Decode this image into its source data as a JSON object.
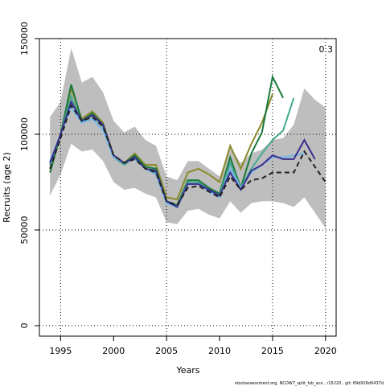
{
  "chart_data": {
    "type": "line",
    "xlabel": "Years",
    "ylabel": "Recruits (age 2)",
    "annotation": "0.3",
    "footer": "stockassessment.org, NCOW7_split_tsb_aco , r15220 , git: 69d926d0437d",
    "x": [
      1994,
      1995,
      1996,
      1997,
      1998,
      1999,
      2000,
      2001,
      2002,
      2003,
      2004,
      2005,
      2006,
      2007,
      2008,
      2009,
      2010,
      2011,
      2012,
      2013,
      2014,
      2015,
      2016,
      2017,
      2018,
      2019,
      2020
    ],
    "band": {
      "color": "#bebebe",
      "lower": [
        68000,
        79000,
        95000,
        91000,
        92000,
        86000,
        75000,
        71000,
        72000,
        69000,
        67000,
        54000,
        53000,
        60000,
        61000,
        58000,
        56000,
        65000,
        59000,
        64000,
        65000,
        65000,
        64000,
        62000,
        67000,
        59000,
        51000
      ],
      "upper": [
        109000,
        117000,
        145000,
        127000,
        130000,
        122000,
        107000,
        101000,
        104000,
        97000,
        94000,
        78000,
        76000,
        86000,
        86000,
        82000,
        78000,
        93000,
        85000,
        90000,
        92000,
        97000,
        98000,
        105000,
        124000,
        118000,
        114000
      ]
    },
    "series": [
      {
        "color": "#8a8a2a",
        "values": [
          80000,
          100000,
          124000,
          108000,
          112000,
          106000,
          89000,
          85000,
          90000,
          84000,
          84000,
          67000,
          66000,
          80000,
          82000,
          79000,
          75000,
          94000,
          82000,
          95000,
          106000,
          121000,
          null,
          null,
          null,
          null,
          null
        ]
      },
      {
        "color": "#1a7a3a",
        "values": [
          80000,
          100000,
          126000,
          107000,
          111000,
          105000,
          89000,
          85000,
          89000,
          83000,
          82000,
          65000,
          63000,
          76000,
          76000,
          72000,
          69000,
          88000,
          72000,
          90000,
          101000,
          130000,
          119000,
          null,
          null,
          null,
          null
        ]
      },
      {
        "color": "#44a890",
        "values": [
          84000,
          100000,
          120000,
          106000,
          110000,
          104000,
          88000,
          84000,
          88000,
          82000,
          80000,
          64000,
          62000,
          75000,
          75000,
          71000,
          68000,
          85000,
          72000,
          82000,
          90000,
          97000,
          102000,
          119000,
          null,
          null,
          null
        ]
      },
      {
        "color": "#74b9e8",
        "values": [
          86000,
          100000,
          114000,
          106000,
          108000,
          102000,
          88000,
          85000,
          87000,
          82000,
          79000,
          64000,
          62000,
          74000,
          74000,
          70000,
          67000,
          82000,
          72000,
          80000,
          84000,
          88000,
          88000,
          89000,
          90000,
          null,
          null
        ]
      },
      {
        "color": "#3a2d8f",
        "values": [
          85000,
          100000,
          117000,
          107000,
          110000,
          105000,
          89000,
          85000,
          88000,
          82000,
          81000,
          65000,
          62000,
          74000,
          74000,
          71000,
          68000,
          80000,
          71000,
          81000,
          84000,
          89000,
          87000,
          87000,
          97000,
          87000,
          null
        ]
      },
      {
        "color": "#222222",
        "dashed": true,
        "values": [
          82000,
          98000,
          115000,
          107000,
          109000,
          104000,
          89000,
          85000,
          87000,
          82000,
          80000,
          65000,
          63000,
          72000,
          73000,
          70000,
          67000,
          78000,
          71000,
          76000,
          77000,
          80000,
          80000,
          80000,
          91000,
          83000,
          75000
        ]
      }
    ],
    "xlim": [
      1993,
      2021
    ],
    "ylim": [
      -5500,
      150000
    ],
    "xticks": [
      1995,
      2000,
      2005,
      2010,
      2015,
      2020
    ],
    "yticks": [
      0,
      50000,
      100000,
      150000
    ],
    "xgrid": [
      1995,
      2005,
      2015,
      2020
    ],
    "ygrid": [
      0,
      50000,
      100000
    ]
  }
}
